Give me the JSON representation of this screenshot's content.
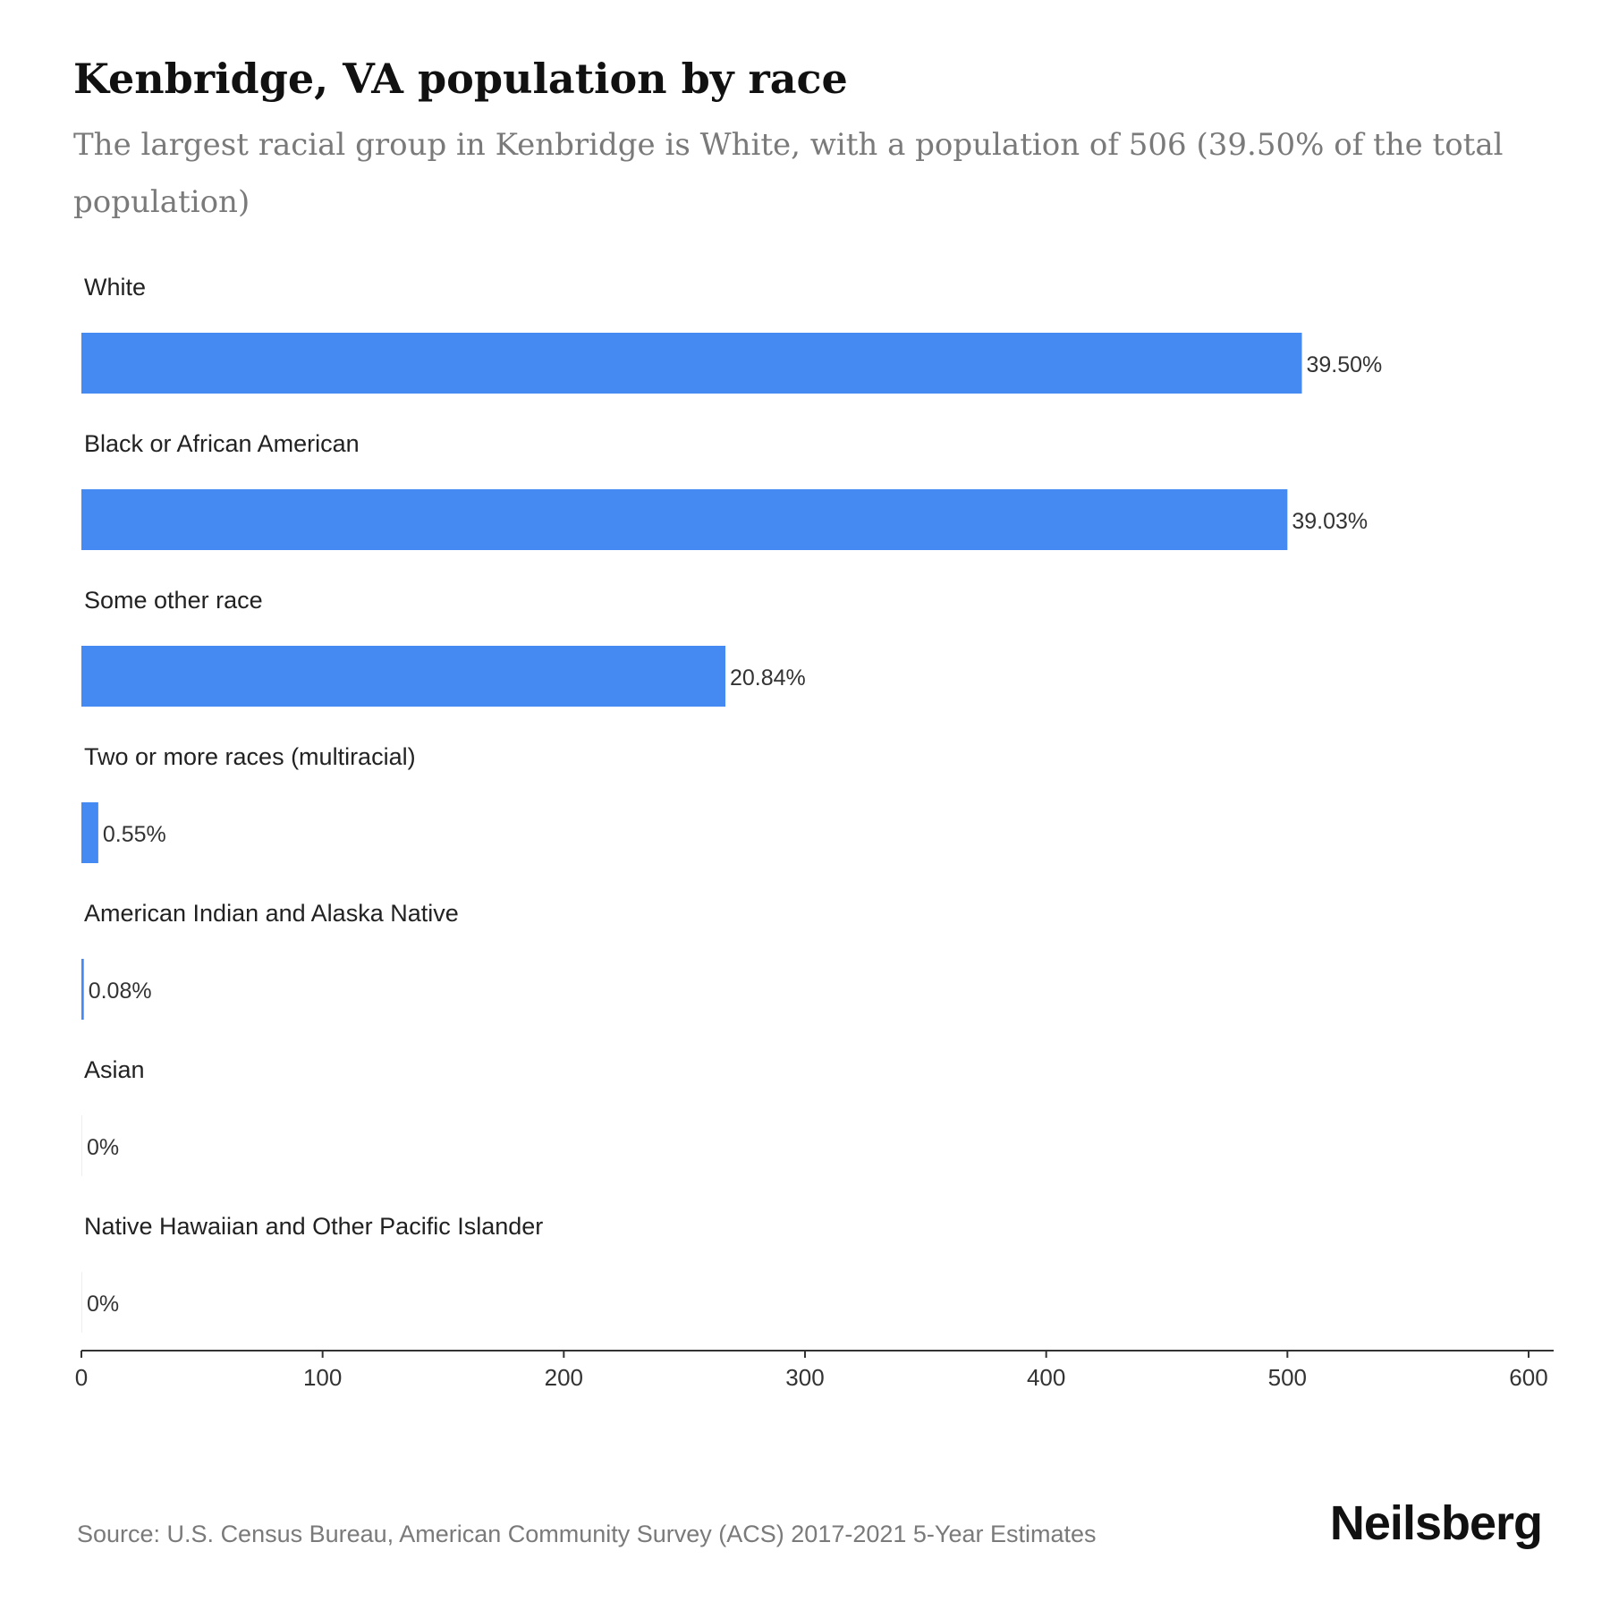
{
  "header": {
    "title": "Kenbridge, VA population by race",
    "subtitle": "The largest racial group in Kenbridge is White, with a population of 506 (39.50% of the total population)"
  },
  "chart_data": {
    "type": "bar",
    "orientation": "horizontal",
    "categories": [
      "White",
      "Black or African American",
      "Some other race",
      "Two or more races (multiracial)",
      "American Indian and Alaska Native",
      "Asian",
      "Native Hawaiian and Other Pacific Islander"
    ],
    "values": [
      506,
      500,
      267,
      7,
      1,
      0,
      0
    ],
    "value_labels": [
      "39.50%",
      "39.03%",
      "20.84%",
      "0.55%",
      "0.08%",
      "0%",
      "0%"
    ],
    "xlim": [
      0,
      600
    ],
    "xticks": [
      "0",
      "100",
      "200",
      "300",
      "400",
      "500",
      "600"
    ],
    "grid": false,
    "bar_color": "#4589f2"
  },
  "footer": {
    "source": "Source: U.S. Census Bureau, American Community Survey (ACS) 2017-2021 5-Year Estimates",
    "logo_text": "Neilsberg"
  }
}
